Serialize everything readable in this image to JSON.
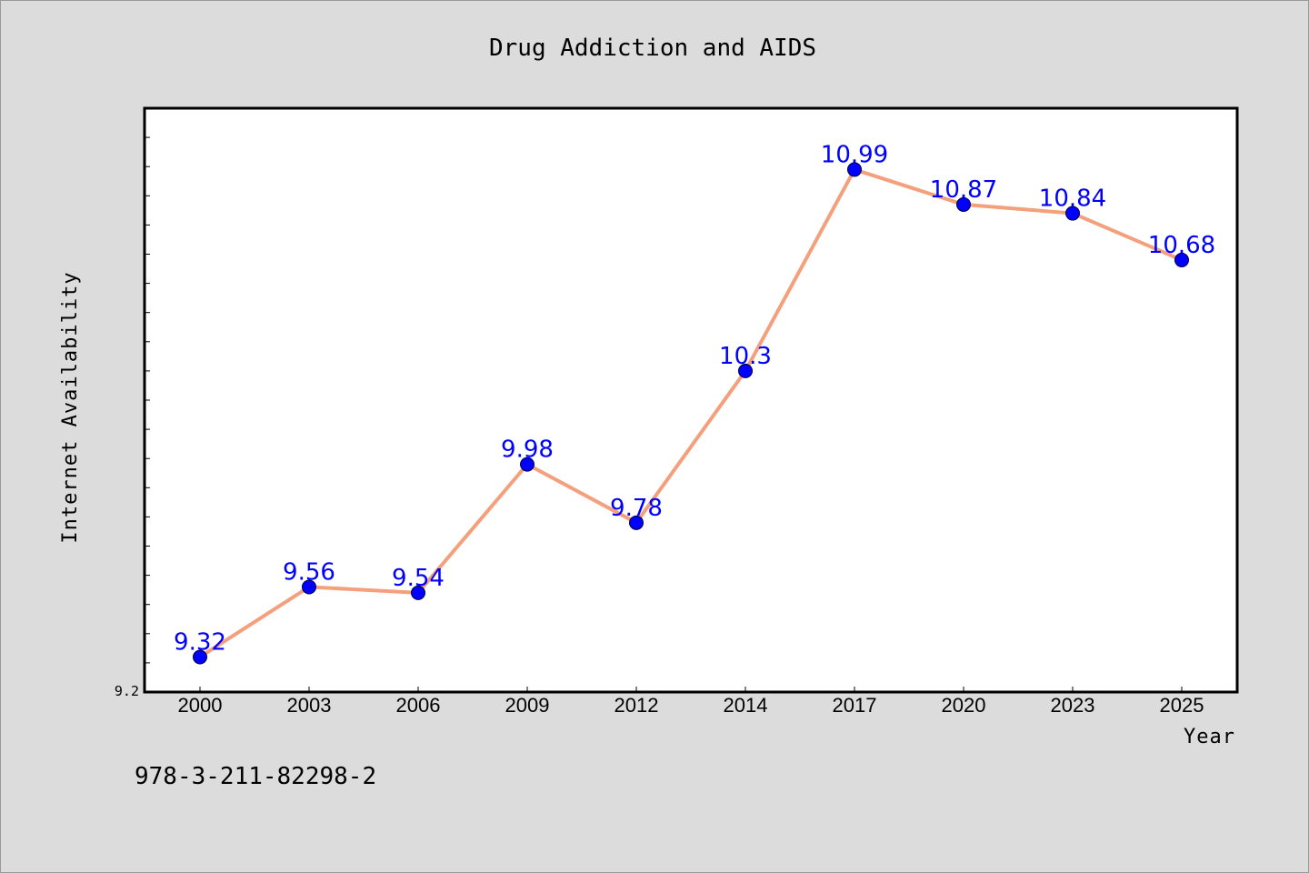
{
  "footer_text": "978-3-211-82298-2",
  "colors": {
    "background": "#dcdcdc",
    "plot_background": "#ffffff",
    "line": "#f4a07c",
    "marker": "#0000ff",
    "data_label": "#0000ff"
  },
  "chart_data": {
    "type": "line",
    "title": "Drug Addiction and AIDS",
    "xlabel": "Year",
    "ylabel": "Internet Availability",
    "categories": [
      "2000",
      "2003",
      "2006",
      "2009",
      "2012",
      "2014",
      "2017",
      "2020",
      "2023",
      "2025"
    ],
    "series": [
      {
        "values": [
          9.32,
          9.56,
          9.54,
          9.98,
          9.78,
          10.3,
          10.99,
          10.87,
          10.84,
          10.68
        ]
      }
    ],
    "data_labels": [
      "9.32",
      "9.56",
      "9.54",
      "9.98",
      "9.78",
      "10.3",
      "10.99",
      "10.87",
      "10.84",
      "10.68"
    ],
    "y_tick_labels": [
      "9.2"
    ],
    "ylim": [
      9.2,
      11.2
    ],
    "y_minor_step": 0.1,
    "grid": false,
    "legend": "none",
    "markers": true
  }
}
